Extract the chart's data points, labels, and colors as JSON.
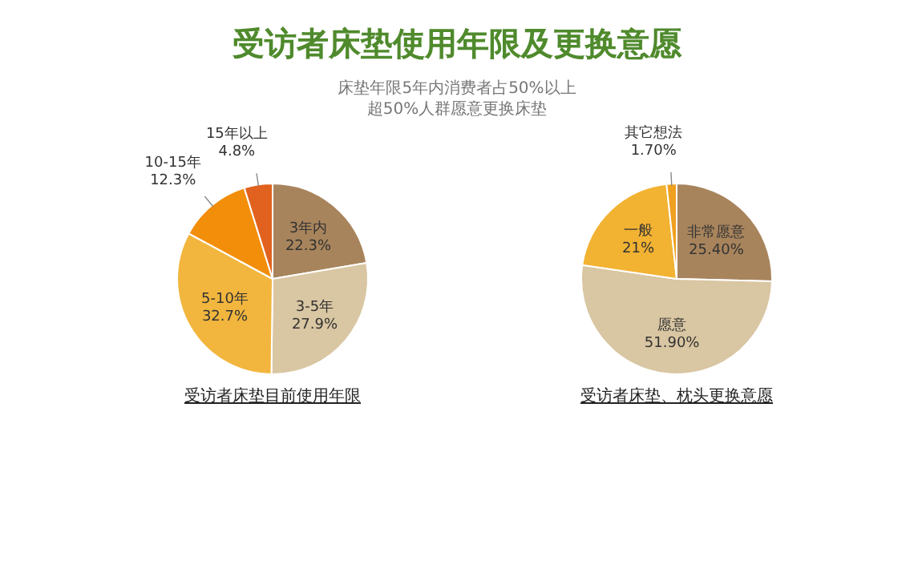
{
  "chart_data": [
    {
      "type": "other",
      "title": "受访者床垫使用年限及更换意愿",
      "subtitle": "床垫年限5年内消费者占50%以上",
      "annotations": [
        "超50%人群愿意更换床垫"
      ]
    },
    {
      "type": "pie",
      "title": "受访者床垫目前使用年限",
      "categories": [
        "3年内",
        "3-5年",
        "5-10年",
        "10-15年",
        "15年以上"
      ],
      "values": [
        22.3,
        27.9,
        32.7,
        12.3,
        4.8
      ],
      "value_labels": [
        "22.3%",
        "27.9%",
        "32.7%",
        "12.3%",
        "4.8%"
      ],
      "colors": [
        "#a8845c",
        "#d9c6a2",
        "#f2b63e",
        "#f28e0a",
        "#e0621e"
      ],
      "legend": false
    },
    {
      "type": "pie",
      "title": "受访者床垫、枕头更换意愿",
      "categories": [
        "非常愿意",
        "愿意",
        "一般",
        "其它想法"
      ],
      "values": [
        25.4,
        51.9,
        21,
        1.7
      ],
      "value_labels": [
        "25.40%",
        "51.90%",
        "21%",
        "1.70%"
      ],
      "colors": [
        "#a8845c",
        "#d9c6a2",
        "#f2b232",
        "#f0a020"
      ],
      "legend": false
    }
  ]
}
